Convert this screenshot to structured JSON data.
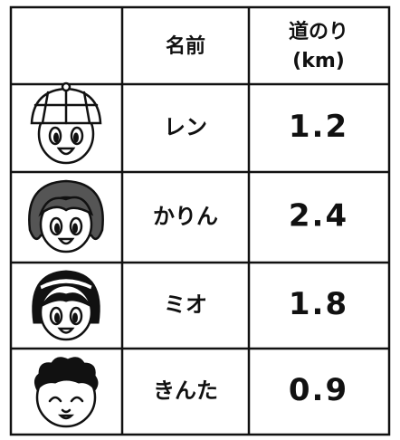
{
  "header": {
    "name": "名前",
    "distance": [
      "道のり",
      "(km)"
    ]
  },
  "rows": [
    {
      "name": "レン",
      "distance": 1.2
    },
    {
      "name": "かりん",
      "distance": 2.4
    },
    {
      "name": "ミオ",
      "distance": 1.8
    },
    {
      "name": "きんた",
      "distance": 0.9
    }
  ]
}
